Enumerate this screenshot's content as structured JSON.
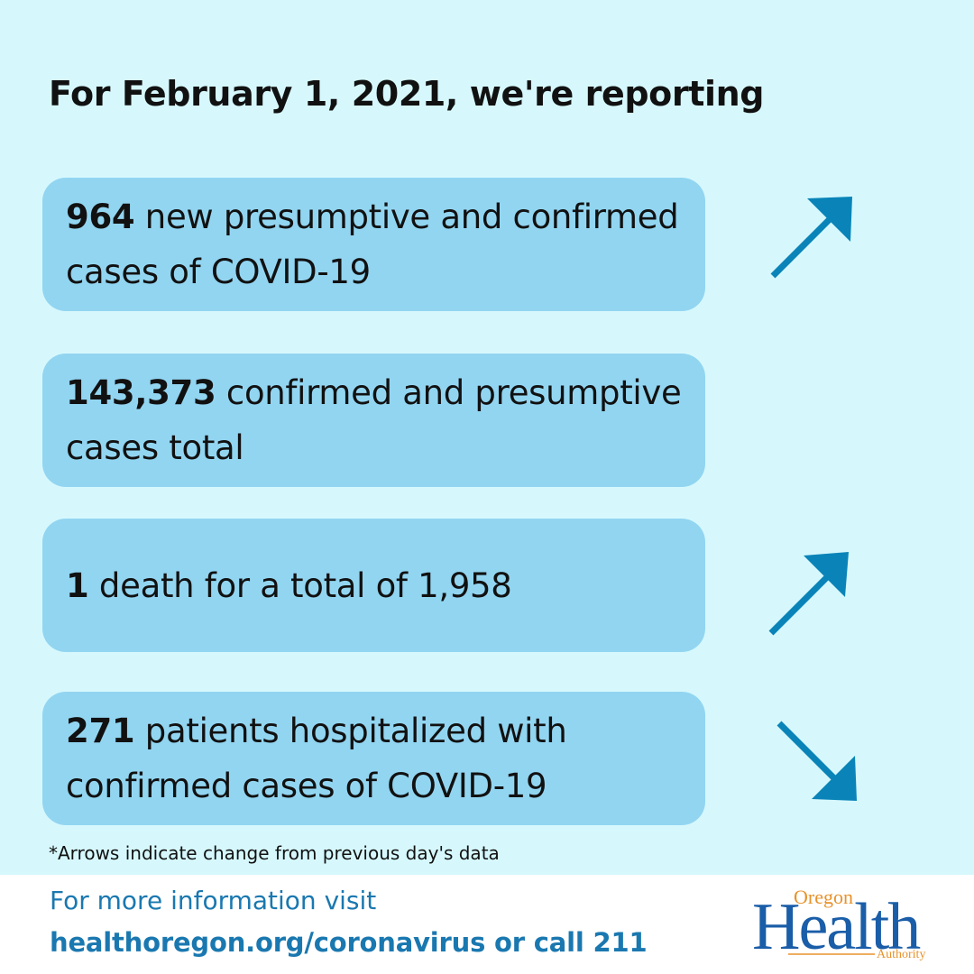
{
  "headline": "For February 1, 2021, we're reporting",
  "cards": [
    {
      "value": "964",
      "text": " new presumptive and confirmed cases of COVID-19",
      "trend": "up"
    },
    {
      "value": "143,373",
      "text": " confirmed and presumptive cases total",
      "trend": "none"
    },
    {
      "value": "1",
      "text": " death for a total of 1,958",
      "trend": "up"
    },
    {
      "value": "271",
      "text": " patients hospitalized with confirmed cases of COVID-19",
      "trend": "down"
    }
  ],
  "footnote": "*Arrows indicate change from previous day's data",
  "footer": {
    "line1": "For more information visit",
    "line2": "healthoregon.org/coronavirus or call 211"
  },
  "logo": {
    "top": "Oregon",
    "main": "Health",
    "bottom": "Authority"
  },
  "colors": {
    "background": "#d6f8fd",
    "card": "#92d5f1",
    "arrow": "#0a84b8",
    "footer_text": "#1a78b0"
  },
  "icons": {
    "up": "arrow-up-right-icon",
    "down": "arrow-down-right-icon"
  }
}
